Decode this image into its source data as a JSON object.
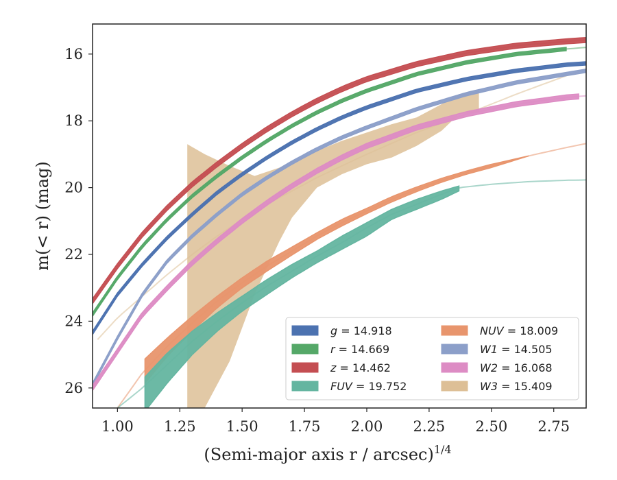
{
  "chart_data": {
    "type": "line",
    "xlabel": "(Semi-major axis r / arcsec)",
    "xlabel_exponent": "1/4",
    "ylabel": "m(< r) (mag)",
    "xlim": [
      0.9,
      2.88
    ],
    "ylim": [
      26.6,
      15.1
    ],
    "y_inverted": true,
    "xticks": [
      1.0,
      1.25,
      1.5,
      1.75,
      2.0,
      2.25,
      2.5,
      2.75
    ],
    "xtick_labels": [
      "1.00",
      "1.25",
      "1.50",
      "1.75",
      "2.00",
      "2.25",
      "2.50",
      "2.75"
    ],
    "yticks": [
      16,
      18,
      20,
      22,
      24,
      26
    ],
    "ytick_labels": [
      "16",
      "18",
      "20",
      "22",
      "24",
      "26"
    ],
    "grid": false,
    "legend_position": "lower-right",
    "legend_columns": 2,
    "series": [
      {
        "name": "g",
        "legend_label": "g = 14.918",
        "color": "#4c72b0",
        "x": [
          0.9,
          1.0,
          1.1,
          1.2,
          1.3,
          1.4,
          1.5,
          1.6,
          1.7,
          1.8,
          1.9,
          2.0,
          2.2,
          2.4,
          2.6,
          2.8,
          2.88
        ],
        "y": [
          24.35,
          23.2,
          22.3,
          21.5,
          20.8,
          20.15,
          19.6,
          19.1,
          18.65,
          18.25,
          17.9,
          17.6,
          17.1,
          16.75,
          16.5,
          16.32,
          16.28
        ],
        "band": 0.1,
        "solid_until": 2.88
      },
      {
        "name": "r",
        "legend_label": "r = 14.669",
        "color": "#55a868",
        "x": [
          0.9,
          1.0,
          1.1,
          1.2,
          1.3,
          1.4,
          1.5,
          1.6,
          1.7,
          1.8,
          1.9,
          2.0,
          2.2,
          2.4,
          2.6,
          2.8,
          2.88
        ],
        "y": [
          23.8,
          22.7,
          21.75,
          20.95,
          20.25,
          19.65,
          19.1,
          18.6,
          18.15,
          17.75,
          17.4,
          17.1,
          16.6,
          16.25,
          16.0,
          15.85,
          15.8
        ],
        "band": 0.1,
        "solid_until": 2.8
      },
      {
        "name": "z",
        "legend_label": "z = 14.462",
        "color": "#c44e52",
        "x": [
          0.9,
          1.0,
          1.1,
          1.2,
          1.3,
          1.4,
          1.5,
          1.6,
          1.7,
          1.8,
          1.9,
          2.0,
          2.2,
          2.4,
          2.6,
          2.8,
          2.88
        ],
        "y": [
          23.4,
          22.35,
          21.4,
          20.6,
          19.9,
          19.3,
          18.75,
          18.25,
          17.8,
          17.4,
          17.05,
          16.75,
          16.3,
          15.97,
          15.75,
          15.62,
          15.58
        ],
        "band": 0.15,
        "solid_until": 2.88
      },
      {
        "name": "FUV",
        "legend_label": "FUV = 19.752",
        "color": "#64b5a0",
        "x": [
          1.0,
          1.1,
          1.2,
          1.3,
          1.4,
          1.5,
          1.6,
          1.7,
          1.8,
          1.9,
          2.0,
          2.1,
          2.2,
          2.3,
          2.37,
          2.5,
          2.65,
          2.8,
          2.88
        ],
        "y": [
          26.6,
          26.0,
          25.3,
          24.6,
          24.0,
          23.45,
          22.95,
          22.5,
          22.05,
          21.65,
          21.2,
          20.8,
          20.5,
          20.2,
          20.0,
          19.9,
          19.82,
          19.78,
          19.77
        ],
        "band_lower": [
          27.6,
          26.8,
          25.85,
          25.0,
          24.3,
          23.7,
          23.2,
          22.7,
          22.25,
          21.85,
          21.45,
          20.95,
          20.65,
          20.35,
          20.1,
          19.9,
          19.82,
          19.78,
          19.77
        ],
        "band_upper": [
          26.6,
          25.75,
          24.95,
          24.3,
          23.75,
          23.25,
          22.75,
          22.3,
          21.9,
          21.45,
          21.05,
          20.65,
          20.35,
          20.1,
          19.95,
          19.9,
          19.82,
          19.78,
          19.77
        ],
        "band_range": [
          1.11,
          2.37
        ]
      },
      {
        "name": "NUV",
        "legend_label": "NUV = 18.009",
        "color": "#e8956d",
        "x": [
          1.0,
          1.1,
          1.2,
          1.3,
          1.4,
          1.5,
          1.6,
          1.7,
          1.8,
          1.9,
          2.0,
          2.1,
          2.2,
          2.3,
          2.4,
          2.5,
          2.65,
          2.8,
          2.88
        ],
        "y": [
          26.6,
          25.55,
          24.75,
          24.05,
          23.4,
          22.85,
          22.35,
          21.9,
          21.45,
          21.05,
          20.7,
          20.35,
          20.05,
          19.78,
          19.55,
          19.35,
          19.05,
          18.8,
          18.68
        ],
        "band_lower": [
          27.2,
          25.95,
          25.05,
          24.3,
          23.6,
          23.0,
          22.5,
          22.02,
          21.55,
          21.15,
          20.78,
          20.43,
          20.12,
          19.84,
          19.6,
          19.4,
          19.05,
          18.8,
          18.68
        ],
        "band_upper": [
          26.6,
          25.2,
          24.5,
          23.85,
          23.25,
          22.7,
          22.2,
          21.78,
          21.35,
          20.95,
          20.62,
          20.27,
          19.98,
          19.72,
          19.5,
          19.3,
          19.05,
          18.8,
          18.68
        ],
        "band_range": [
          1.11,
          2.65
        ]
      },
      {
        "name": "W1",
        "legend_label": "W1 = 14.505",
        "color": "#8c9fc9",
        "x": [
          0.9,
          1.0,
          1.1,
          1.2,
          1.3,
          1.4,
          1.5,
          1.6,
          1.7,
          1.8,
          1.9,
          2.0,
          2.2,
          2.4,
          2.6,
          2.8,
          2.88
        ],
        "y": [
          25.9,
          24.5,
          23.2,
          22.2,
          21.45,
          20.8,
          20.2,
          19.7,
          19.25,
          18.85,
          18.5,
          18.2,
          17.65,
          17.2,
          16.85,
          16.6,
          16.5
        ],
        "band": 0.1,
        "solid_until": 2.88
      },
      {
        "name": "W2",
        "legend_label": "W2 = 16.068",
        "color": "#dd8cc4",
        "x": [
          0.9,
          1.0,
          1.1,
          1.2,
          1.3,
          1.4,
          1.5,
          1.6,
          1.7,
          1.8,
          1.9,
          2.0,
          2.2,
          2.4,
          2.6,
          2.8,
          2.88
        ],
        "y": [
          26.0,
          24.9,
          23.8,
          23.0,
          22.25,
          21.6,
          21.0,
          20.45,
          19.95,
          19.5,
          19.1,
          18.75,
          18.2,
          17.8,
          17.5,
          17.3,
          17.25
        ],
        "band": 0.15,
        "solid_until": 2.85
      },
      {
        "name": "W3",
        "legend_label": "W3 = 15.409",
        "color": "#ddbf96",
        "x": [
          0.92,
          1.0,
          1.1,
          1.2,
          1.3,
          1.4,
          1.5,
          1.6,
          1.7,
          1.8,
          1.9,
          2.0,
          2.2,
          2.4,
          2.6,
          2.8,
          2.88
        ],
        "y": [
          24.55,
          23.9,
          23.25,
          22.6,
          22.0,
          21.45,
          20.95,
          20.5,
          20.1,
          19.7,
          19.35,
          19.0,
          18.35,
          17.8,
          17.2,
          16.65,
          16.45
        ],
        "band_x": [
          1.28,
          1.35,
          1.45,
          1.55,
          1.65,
          1.7,
          1.8,
          1.9,
          2.0,
          2.1,
          2.2,
          2.3,
          2.37,
          2.45
        ],
        "band_upper": [
          18.7,
          19.0,
          19.35,
          19.65,
          19.4,
          19.2,
          18.9,
          18.6,
          18.35,
          18.1,
          17.9,
          17.5,
          17.2,
          17.1
        ],
        "band_lower": [
          26.6,
          26.6,
          25.2,
          23.2,
          21.6,
          20.9,
          20.0,
          19.6,
          19.3,
          19.1,
          18.75,
          18.3,
          17.8,
          17.75
        ]
      }
    ]
  }
}
